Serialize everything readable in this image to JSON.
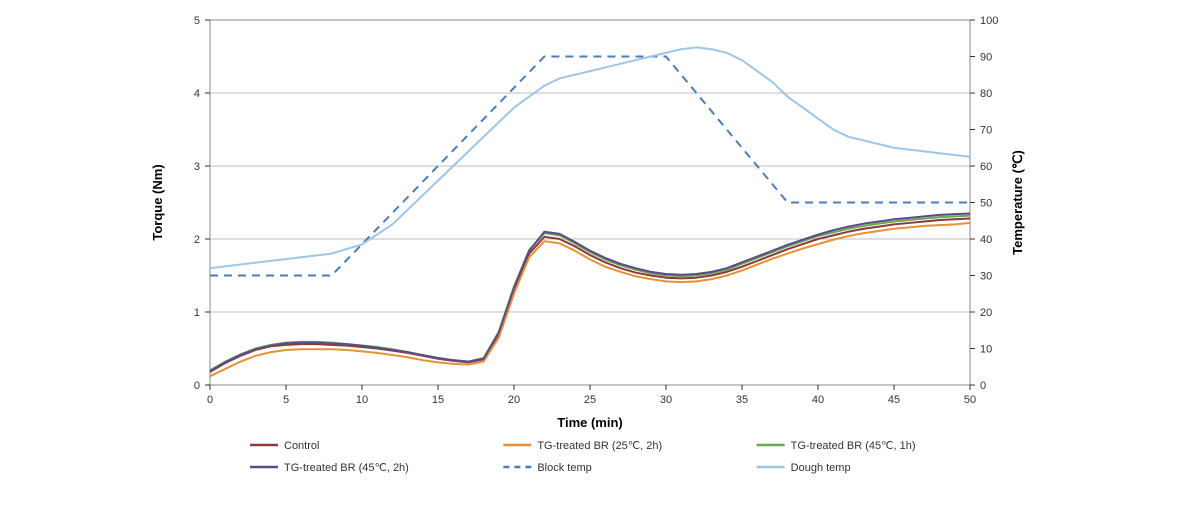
{
  "chart": {
    "type": "line-dual-axis",
    "background_color": "#ffffff",
    "plot_border_color": "#888888",
    "grid_color": "#808080",
    "x": {
      "label": "Time (min)",
      "min": 0,
      "max": 50,
      "tick_step": 5,
      "label_fontsize": 13,
      "tick_fontsize": 11
    },
    "y_left": {
      "label": "Torque (Nm)",
      "min": 0,
      "max": 5,
      "tick_step": 1,
      "label_fontsize": 13,
      "tick_fontsize": 11
    },
    "y_right": {
      "label": "Temperature (℃)",
      "min": 0,
      "max": 100,
      "tick_step": 10,
      "label_fontsize": 13,
      "tick_fontsize": 11
    },
    "series": [
      {
        "name": "Control",
        "axis": "left",
        "color": "#8b3a3a",
        "dash": "solid",
        "width": 2,
        "points": [
          [
            0,
            0.18
          ],
          [
            1,
            0.3
          ],
          [
            2,
            0.4
          ],
          [
            3,
            0.48
          ],
          [
            4,
            0.53
          ],
          [
            5,
            0.55
          ],
          [
            6,
            0.56
          ],
          [
            7,
            0.56
          ],
          [
            8,
            0.55
          ],
          [
            9,
            0.54
          ],
          [
            10,
            0.52
          ],
          [
            11,
            0.5
          ],
          [
            12,
            0.47
          ],
          [
            13,
            0.44
          ],
          [
            14,
            0.4
          ],
          [
            15,
            0.36
          ],
          [
            16,
            0.33
          ],
          [
            17,
            0.31
          ],
          [
            18,
            0.35
          ],
          [
            19,
            0.7
          ],
          [
            20,
            1.3
          ],
          [
            21,
            1.8
          ],
          [
            22,
            2.03
          ],
          [
            23,
            2.0
          ],
          [
            24,
            1.9
          ],
          [
            25,
            1.78
          ],
          [
            26,
            1.68
          ],
          [
            27,
            1.6
          ],
          [
            28,
            1.54
          ],
          [
            29,
            1.5
          ],
          [
            30,
            1.47
          ],
          [
            31,
            1.46
          ],
          [
            32,
            1.47
          ],
          [
            33,
            1.5
          ],
          [
            34,
            1.55
          ],
          [
            35,
            1.62
          ],
          [
            36,
            1.7
          ],
          [
            37,
            1.78
          ],
          [
            38,
            1.86
          ],
          [
            39,
            1.93
          ],
          [
            40,
            2.0
          ],
          [
            41,
            2.05
          ],
          [
            42,
            2.1
          ],
          [
            43,
            2.14
          ],
          [
            44,
            2.17
          ],
          [
            45,
            2.2
          ],
          [
            46,
            2.22
          ],
          [
            47,
            2.24
          ],
          [
            48,
            2.26
          ],
          [
            49,
            2.27
          ],
          [
            50,
            2.28
          ]
        ]
      },
      {
        "name": "TG-treated BR (25℃, 2h)",
        "axis": "left",
        "color": "#e69138",
        "dash": "solid",
        "width": 2,
        "points": [
          [
            0,
            0.12
          ],
          [
            1,
            0.22
          ],
          [
            2,
            0.32
          ],
          [
            3,
            0.4
          ],
          [
            4,
            0.45
          ],
          [
            5,
            0.48
          ],
          [
            6,
            0.49
          ],
          [
            7,
            0.49
          ],
          [
            8,
            0.49
          ],
          [
            9,
            0.48
          ],
          [
            10,
            0.46
          ],
          [
            11,
            0.44
          ],
          [
            12,
            0.41
          ],
          [
            13,
            0.38
          ],
          [
            14,
            0.34
          ],
          [
            15,
            0.31
          ],
          [
            16,
            0.29
          ],
          [
            17,
            0.28
          ],
          [
            18,
            0.32
          ],
          [
            19,
            0.65
          ],
          [
            20,
            1.25
          ],
          [
            21,
            1.75
          ],
          [
            22,
            1.97
          ],
          [
            23,
            1.94
          ],
          [
            24,
            1.84
          ],
          [
            25,
            1.72
          ],
          [
            26,
            1.62
          ],
          [
            27,
            1.55
          ],
          [
            28,
            1.49
          ],
          [
            29,
            1.45
          ],
          [
            30,
            1.42
          ],
          [
            31,
            1.41
          ],
          [
            32,
            1.42
          ],
          [
            33,
            1.45
          ],
          [
            34,
            1.5
          ],
          [
            35,
            1.57
          ],
          [
            36,
            1.65
          ],
          [
            37,
            1.73
          ],
          [
            38,
            1.8
          ],
          [
            39,
            1.87
          ],
          [
            40,
            1.93
          ],
          [
            41,
            1.99
          ],
          [
            42,
            2.04
          ],
          [
            43,
            2.08
          ],
          [
            44,
            2.11
          ],
          [
            45,
            2.14
          ],
          [
            46,
            2.16
          ],
          [
            47,
            2.18
          ],
          [
            48,
            2.19
          ],
          [
            49,
            2.2
          ],
          [
            50,
            2.22
          ]
        ]
      },
      {
        "name": "TG-treated BR (45℃, 1h)",
        "axis": "left",
        "color": "#6aa84f",
        "dash": "solid",
        "width": 2,
        "points": [
          [
            0,
            0.2
          ],
          [
            1,
            0.32
          ],
          [
            2,
            0.42
          ],
          [
            3,
            0.5
          ],
          [
            4,
            0.55
          ],
          [
            5,
            0.58
          ],
          [
            6,
            0.59
          ],
          [
            7,
            0.59
          ],
          [
            8,
            0.58
          ],
          [
            9,
            0.56
          ],
          [
            10,
            0.54
          ],
          [
            11,
            0.52
          ],
          [
            12,
            0.49
          ],
          [
            13,
            0.45
          ],
          [
            14,
            0.41
          ],
          [
            15,
            0.37
          ],
          [
            16,
            0.34
          ],
          [
            17,
            0.32
          ],
          [
            18,
            0.37
          ],
          [
            19,
            0.73
          ],
          [
            20,
            1.35
          ],
          [
            21,
            1.85
          ],
          [
            22,
            2.08
          ],
          [
            23,
            2.05
          ],
          [
            24,
            1.94
          ],
          [
            25,
            1.82
          ],
          [
            26,
            1.72
          ],
          [
            27,
            1.64
          ],
          [
            28,
            1.58
          ],
          [
            29,
            1.53
          ],
          [
            30,
            1.5
          ],
          [
            31,
            1.49
          ],
          [
            32,
            1.5
          ],
          [
            33,
            1.53
          ],
          [
            34,
            1.58
          ],
          [
            35,
            1.66
          ],
          [
            36,
            1.74
          ],
          [
            37,
            1.82
          ],
          [
            38,
            1.9
          ],
          [
            39,
            1.97
          ],
          [
            40,
            2.04
          ],
          [
            41,
            2.09
          ],
          [
            42,
            2.14
          ],
          [
            43,
            2.18
          ],
          [
            44,
            2.21
          ],
          [
            45,
            2.24
          ],
          [
            46,
            2.26
          ],
          [
            47,
            2.28
          ],
          [
            48,
            2.3
          ],
          [
            49,
            2.31
          ],
          [
            50,
            2.32
          ]
        ]
      },
      {
        "name": "TG-treated BR (45℃, 2h)",
        "axis": "left",
        "color": "#5b4b8a",
        "dash": "solid",
        "width": 2,
        "points": [
          [
            0,
            0.19
          ],
          [
            1,
            0.31
          ],
          [
            2,
            0.41
          ],
          [
            3,
            0.49
          ],
          [
            4,
            0.54
          ],
          [
            5,
            0.57
          ],
          [
            6,
            0.58
          ],
          [
            7,
            0.58
          ],
          [
            8,
            0.57
          ],
          [
            9,
            0.56
          ],
          [
            10,
            0.54
          ],
          [
            11,
            0.51
          ],
          [
            12,
            0.48
          ],
          [
            13,
            0.45
          ],
          [
            14,
            0.41
          ],
          [
            15,
            0.37
          ],
          [
            16,
            0.34
          ],
          [
            17,
            0.32
          ],
          [
            18,
            0.36
          ],
          [
            19,
            0.72
          ],
          [
            20,
            1.33
          ],
          [
            21,
            1.84
          ],
          [
            22,
            2.1
          ],
          [
            23,
            2.07
          ],
          [
            24,
            1.96
          ],
          [
            25,
            1.84
          ],
          [
            26,
            1.74
          ],
          [
            27,
            1.66
          ],
          [
            28,
            1.6
          ],
          [
            29,
            1.55
          ],
          [
            30,
            1.52
          ],
          [
            31,
            1.51
          ],
          [
            32,
            1.52
          ],
          [
            33,
            1.55
          ],
          [
            34,
            1.6
          ],
          [
            35,
            1.68
          ],
          [
            36,
            1.76
          ],
          [
            37,
            1.84
          ],
          [
            38,
            1.92
          ],
          [
            39,
            1.99
          ],
          [
            40,
            2.06
          ],
          [
            41,
            2.12
          ],
          [
            42,
            2.17
          ],
          [
            43,
            2.21
          ],
          [
            44,
            2.24
          ],
          [
            45,
            2.27
          ],
          [
            46,
            2.29
          ],
          [
            47,
            2.31
          ],
          [
            48,
            2.33
          ],
          [
            49,
            2.34
          ],
          [
            50,
            2.35
          ]
        ]
      },
      {
        "name": "Block temp",
        "axis": "right",
        "color": "#4a7ebb",
        "dash": "dashed",
        "width": 2,
        "points": [
          [
            0,
            30
          ],
          [
            8,
            30
          ],
          [
            22,
            90
          ],
          [
            30,
            90
          ],
          [
            38,
            50
          ],
          [
            50,
            50
          ]
        ]
      },
      {
        "name": "Dough temp",
        "axis": "right",
        "color": "#9fc5e8",
        "dash": "solid",
        "width": 2,
        "points": [
          [
            0,
            32
          ],
          [
            2,
            33
          ],
          [
            4,
            34
          ],
          [
            6,
            35
          ],
          [
            8,
            36
          ],
          [
            10,
            38.5
          ],
          [
            12,
            44
          ],
          [
            14,
            52
          ],
          [
            16,
            60
          ],
          [
            18,
            68
          ],
          [
            20,
            76
          ],
          [
            22,
            82
          ],
          [
            23,
            84
          ],
          [
            24,
            85
          ],
          [
            25,
            86
          ],
          [
            26,
            87
          ],
          [
            27,
            88
          ],
          [
            28,
            89
          ],
          [
            29,
            90
          ],
          [
            30,
            91
          ],
          [
            31,
            92
          ],
          [
            32,
            92.5
          ],
          [
            33,
            92
          ],
          [
            34,
            91
          ],
          [
            35,
            89
          ],
          [
            36,
            86
          ],
          [
            37,
            83
          ],
          [
            38,
            79
          ],
          [
            39,
            76
          ],
          [
            40,
            73
          ],
          [
            41,
            70
          ],
          [
            42,
            68
          ],
          [
            43,
            67
          ],
          [
            44,
            66
          ],
          [
            45,
            65
          ],
          [
            46,
            64.5
          ],
          [
            47,
            64
          ],
          [
            48,
            63.5
          ],
          [
            49,
            63
          ],
          [
            50,
            62.5
          ]
        ]
      }
    ],
    "legend": {
      "columns": 3,
      "fontsize": 11,
      "line_length": 28
    }
  }
}
